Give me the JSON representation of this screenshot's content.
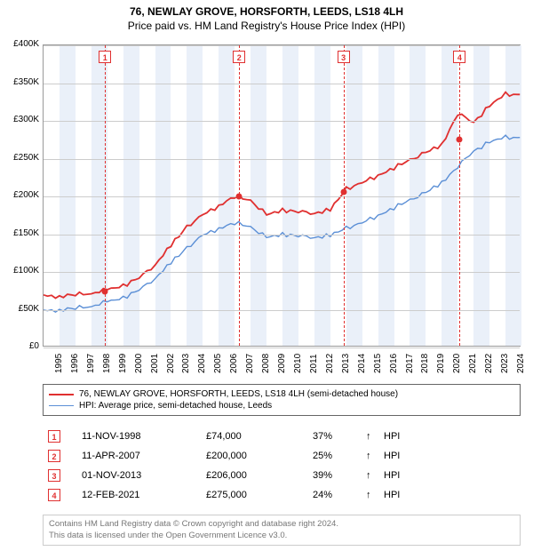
{
  "header": {
    "title": "76, NEWLAY GROVE, HORSFORTH, LEEDS, LS18 4LH",
    "subtitle": "Price paid vs. HM Land Registry's House Price Index (HPI)"
  },
  "chart": {
    "type": "line",
    "background_color": "#ffffff",
    "band_color": "#eaf0f9",
    "grid_color": "#cccccc",
    "border_color": "#999999",
    "x_years": [
      1995,
      1996,
      1997,
      1998,
      1999,
      2000,
      2001,
      2002,
      2003,
      2004,
      2005,
      2006,
      2007,
      2008,
      2009,
      2010,
      2011,
      2012,
      2013,
      2014,
      2015,
      2016,
      2017,
      2018,
      2019,
      2020,
      2021,
      2022,
      2023,
      2024
    ],
    "y_min": 0,
    "y_max": 400000,
    "y_step": 50000,
    "y_labels": [
      "£0",
      "£50K",
      "£100K",
      "£150K",
      "£200K",
      "£250K",
      "£300K",
      "£350K",
      "£400K"
    ],
    "series": [
      {
        "name": "property",
        "label": "76, NEWLAY GROVE, HORSFORTH, LEEDS, LS18 4LH (semi-detached house)",
        "color": "#e03030",
        "width": 1.8,
        "values": [
          68000,
          68000,
          70000,
          72000,
          76000,
          82000,
          92000,
          110000,
          135000,
          160000,
          175000,
          188000,
          200000,
          195000,
          175000,
          182000,
          180000,
          178000,
          182000,
          210000,
          218000,
          228000,
          238000,
          248000,
          258000,
          268000,
          310000,
          298000,
          320000,
          335000
        ]
      },
      {
        "name": "hpi",
        "label": "HPI: Average price, semi-detached house, Leeds",
        "color": "#5b8fd6",
        "width": 1.4,
        "values": [
          48000,
          50000,
          52000,
          55000,
          60000,
          66000,
          76000,
          92000,
          112000,
          132000,
          148000,
          158000,
          165000,
          160000,
          145000,
          150000,
          148000,
          146000,
          148000,
          158000,
          165000,
          175000,
          185000,
          195000,
          205000,
          218000,
          240000,
          260000,
          272000,
          278000
        ]
      }
    ],
    "transactions": [
      {
        "n": "1",
        "year": 1998.86,
        "price": 74000
      },
      {
        "n": "2",
        "year": 2007.28,
        "price": 200000
      },
      {
        "n": "3",
        "year": 2013.83,
        "price": 206000
      },
      {
        "n": "4",
        "year": 2021.12,
        "price": 275000
      }
    ]
  },
  "legend": {
    "items": [
      {
        "color": "#e03030",
        "width": 2,
        "label": "76, NEWLAY GROVE, HORSFORTH, LEEDS, LS18 4LH (semi-detached house)"
      },
      {
        "color": "#5b8fd6",
        "width": 1.4,
        "label": "HPI: Average price, semi-detached house, Leeds"
      }
    ]
  },
  "table": {
    "rows": [
      {
        "n": "1",
        "date": "11-NOV-1998",
        "price": "£74,000",
        "pct": "37%",
        "arrow": "↑",
        "ref": "HPI"
      },
      {
        "n": "2",
        "date": "11-APR-2007",
        "price": "£200,000",
        "pct": "25%",
        "arrow": "↑",
        "ref": "HPI"
      },
      {
        "n": "3",
        "date": "01-NOV-2013",
        "price": "£206,000",
        "pct": "39%",
        "arrow": "↑",
        "ref": "HPI"
      },
      {
        "n": "4",
        "date": "12-FEB-2021",
        "price": "£275,000",
        "pct": "24%",
        "arrow": "↑",
        "ref": "HPI"
      }
    ]
  },
  "footer": {
    "line1": "Contains HM Land Registry data © Crown copyright and database right 2024.",
    "line2": "This data is licensed under the Open Government Licence v3.0."
  }
}
